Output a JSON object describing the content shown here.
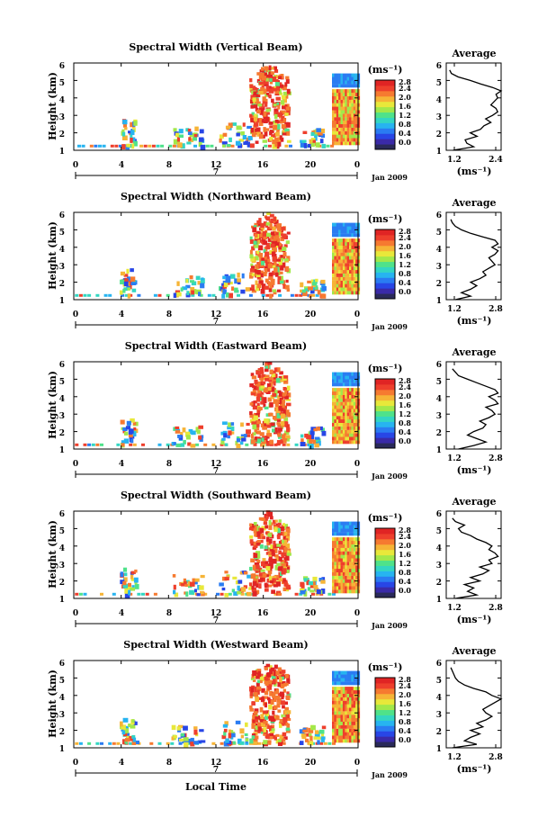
{
  "figure": {
    "xlabel": "Local Time",
    "hour_ticks": [
      "0",
      "4",
      "8",
      "12",
      "16",
      "20",
      "0"
    ],
    "day_label": "7",
    "month_label": "Jan 2009",
    "ylabel": "Height (km)",
    "height_ticks": [
      "1",
      "2",
      "3",
      "4",
      "5",
      "6"
    ],
    "unit_label": "(ms⁻¹)",
    "avg_title": "Average",
    "colormap": [
      "#2a2a5a",
      "#3a2aa8",
      "#2846e6",
      "#2a7cf2",
      "#27b4f0",
      "#33d6c2",
      "#4fe28a",
      "#a2e84a",
      "#e8e83a",
      "#f6b436",
      "#f67a30",
      "#ee3f2c",
      "#e02424"
    ]
  },
  "chart_data": [
    {
      "type": "heatmap",
      "title": "Spectral Width (Vertical Beam)",
      "colorbar_ticks": [
        "0.0",
        "0.4",
        "0.8",
        "1.2",
        "1.6",
        "2.0",
        "2.4",
        "2.8"
      ],
      "avg_xticks": [
        "1.2",
        "2.4"
      ],
      "avg_xlim": [
        1.0,
        2.6
      ],
      "avg_profile": {
        "height": [
          1.0,
          1.2,
          1.4,
          1.6,
          1.8,
          2.0,
          2.2,
          2.4,
          2.6,
          2.8,
          3.0,
          3.2,
          3.4,
          3.6,
          3.8,
          4.0,
          4.2,
          4.4,
          4.6,
          4.8,
          5.0,
          5.2,
          5.4,
          5.6
        ],
        "width": [
          1.2,
          1.8,
          1.6,
          1.55,
          1.9,
          1.7,
          2.0,
          2.1,
          2.3,
          2.15,
          2.35,
          2.5,
          2.45,
          2.3,
          2.4,
          2.5,
          2.45,
          2.6,
          2.35,
          2.0,
          1.7,
          1.35,
          1.15,
          1.1
        ]
      }
    },
    {
      "type": "heatmap",
      "title": "Spectral Width (Northward Beam)",
      "colorbar_ticks": [
        "0.0",
        "0.4",
        "0.8",
        "1.2",
        "1.6",
        "2.0",
        "2.4",
        "2.8"
      ],
      "avg_xticks": [
        "1.2",
        "2.8"
      ],
      "avg_xlim": [
        1.0,
        2.8
      ],
      "avg_profile": {
        "height": [
          1.0,
          1.2,
          1.4,
          1.6,
          1.8,
          2.0,
          2.2,
          2.4,
          2.6,
          2.8,
          3.0,
          3.2,
          3.4,
          3.6,
          3.8,
          4.0,
          4.2,
          4.4,
          4.6,
          4.8,
          5.0,
          5.2,
          5.4,
          5.6
        ],
        "width": [
          1.3,
          1.8,
          1.5,
          1.8,
          2.0,
          1.8,
          2.1,
          2.3,
          2.2,
          2.4,
          2.6,
          2.5,
          2.4,
          2.6,
          2.7,
          2.5,
          2.7,
          2.6,
          2.2,
          1.8,
          1.5,
          1.3,
          1.2,
          1.15
        ]
      }
    },
    {
      "type": "heatmap",
      "title": "Spectral Width (Eastward Beam)",
      "colorbar_ticks": [
        "0.0",
        "0.4",
        "0.8",
        "1.2",
        "1.6",
        "2.0",
        "2.4",
        "2.8"
      ],
      "avg_xticks": [
        "1.2",
        "2.8"
      ],
      "avg_xlim": [
        1.0,
        2.8
      ],
      "avg_profile": {
        "height": [
          1.0,
          1.2,
          1.4,
          1.6,
          1.8,
          2.0,
          2.2,
          2.4,
          2.6,
          2.8,
          3.0,
          3.2,
          3.4,
          3.6,
          3.8,
          4.0,
          4.2,
          4.4,
          4.6,
          4.8,
          5.0,
          5.2,
          5.4,
          5.6
        ],
        "width": [
          1.4,
          1.9,
          2.3,
          2.0,
          1.7,
          1.9,
          2.2,
          2.3,
          2.1,
          2.4,
          2.6,
          2.5,
          2.3,
          2.7,
          2.6,
          2.4,
          2.7,
          2.6,
          2.3,
          2.0,
          1.7,
          1.4,
          1.3,
          1.2
        ]
      }
    },
    {
      "type": "heatmap",
      "title": "Spectral Width (Southward Beam)",
      "colorbar_ticks": [
        "0.0",
        "0.4",
        "0.8",
        "1.2",
        "1.6",
        "2.0",
        "2.4",
        "2.8"
      ],
      "avg_xticks": [
        "1.2",
        "2.8"
      ],
      "avg_xlim": [
        1.0,
        2.8
      ],
      "avg_profile": {
        "height": [
          1.0,
          1.2,
          1.4,
          1.6,
          1.8,
          2.0,
          2.2,
          2.4,
          2.6,
          2.8,
          3.0,
          3.2,
          3.4,
          3.6,
          3.8,
          4.0,
          4.2,
          4.4,
          4.6,
          4.8,
          5.0,
          5.2,
          5.4,
          5.6
        ],
        "width": [
          1.3,
          2.0,
          1.7,
          1.9,
          1.6,
          2.1,
          1.8,
          2.2,
          2.4,
          2.1,
          2.5,
          2.4,
          2.7,
          2.6,
          2.4,
          2.5,
          2.3,
          2.0,
          1.8,
          1.5,
          1.4,
          1.6,
          1.3,
          1.2
        ]
      }
    },
    {
      "type": "heatmap",
      "title": "Spectral Width (Westward Beam)",
      "colorbar_ticks": [
        "0.0",
        "0.4",
        "0.8",
        "1.2",
        "1.6",
        "2.0",
        "2.4",
        "2.8"
      ],
      "avg_xticks": [
        "1.2",
        "2.8"
      ],
      "avg_xlim": [
        1.0,
        2.8
      ],
      "avg_profile": {
        "height": [
          1.0,
          1.2,
          1.4,
          1.6,
          1.8,
          2.0,
          2.2,
          2.4,
          2.6,
          2.8,
          3.0,
          3.2,
          3.4,
          3.6,
          3.8,
          4.0,
          4.2,
          4.4,
          4.6,
          4.8,
          5.0,
          5.2,
          5.4,
          5.6
        ],
        "width": [
          1.2,
          2.0,
          1.6,
          1.8,
          2.1,
          1.8,
          2.2,
          2.0,
          2.3,
          2.5,
          2.3,
          2.2,
          2.4,
          2.6,
          2.8,
          2.5,
          2.3,
          1.9,
          1.6,
          1.4,
          1.3,
          1.25,
          1.2,
          1.15
        ]
      }
    }
  ]
}
